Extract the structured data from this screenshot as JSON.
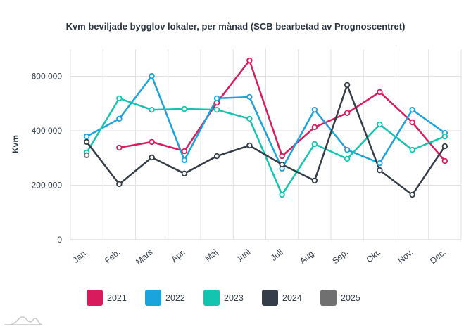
{
  "chart_data": {
    "type": "line",
    "title": "Kvm beviljade bygglov lokaler, per månad (SCB bearbetad av Prognoscentret)",
    "xlabel": "",
    "ylabel": "Kvm",
    "ylim": [
      0,
      700000
    ],
    "yticks": [
      0,
      200000,
      400000,
      600000
    ],
    "ytick_labels": [
      "0",
      "200 000",
      "400 000",
      "600 000"
    ],
    "categories": [
      "Jan.",
      "Feb.",
      "Mars",
      "Apr.",
      "Maj",
      "Juni",
      "Juli",
      "Aug.",
      "Sep.",
      "Okt.",
      "Nov.",
      "Dec."
    ],
    "grid": true,
    "legend_position": "bottom",
    "series": [
      {
        "name": "2021",
        "color": "#d81b5c",
        "values": [
          null,
          338000,
          359000,
          325000,
          503000,
          658000,
          307000,
          413000,
          465000,
          542000,
          431000,
          289000
        ]
      },
      {
        "name": "2022",
        "color": "#1aa3dc",
        "values": [
          379000,
          444000,
          601000,
          292000,
          519000,
          524000,
          261000,
          477000,
          330000,
          281000,
          477000,
          392000
        ]
      },
      {
        "name": "2023",
        "color": "#14c4b0",
        "values": [
          320000,
          519000,
          477000,
          480000,
          477000,
          444000,
          165000,
          351000,
          297000,
          423000,
          330000,
          379000
        ]
      },
      {
        "name": "2024",
        "color": "#343d48",
        "values": [
          359000,
          204000,
          302000,
          243000,
          307000,
          346000,
          276000,
          217000,
          568000,
          255000,
          165000,
          343000
        ]
      },
      {
        "name": "2025",
        "color": "#707070",
        "values": [
          310000,
          null,
          null,
          null,
          null,
          null,
          null,
          null,
          null,
          null,
          null,
          null
        ]
      }
    ]
  }
}
